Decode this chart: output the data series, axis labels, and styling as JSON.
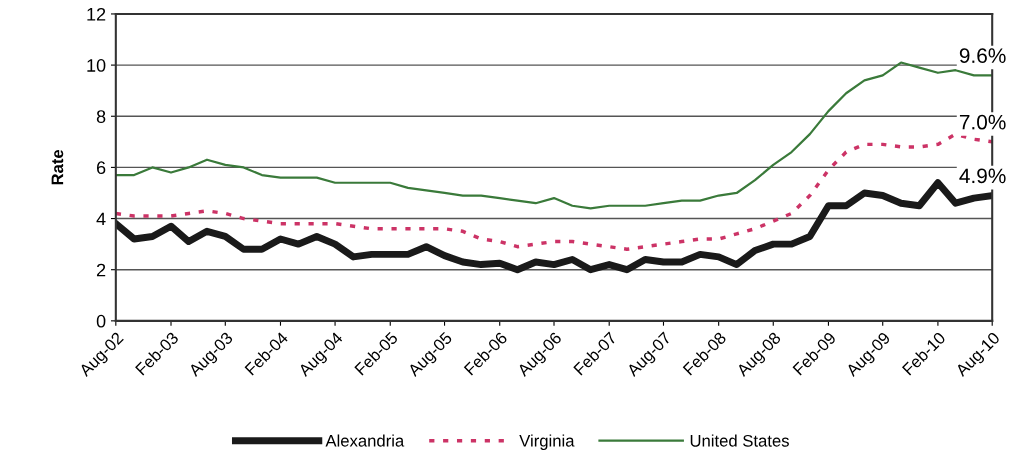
{
  "chart_data": {
    "type": "line",
    "ylabel": "Rate",
    "x": [
      "2002-08",
      "2002-10",
      "2002-12",
      "2003-02",
      "2003-04",
      "2003-06",
      "2003-08",
      "2003-10",
      "2003-12",
      "2004-02",
      "2004-04",
      "2004-06",
      "2004-08",
      "2004-10",
      "2004-12",
      "2005-02",
      "2005-04",
      "2005-06",
      "2005-08",
      "2005-10",
      "2005-12",
      "2006-02",
      "2006-04",
      "2006-06",
      "2006-08",
      "2006-10",
      "2006-12",
      "2007-02",
      "2007-04",
      "2007-06",
      "2007-08",
      "2007-10",
      "2007-12",
      "2008-02",
      "2008-04",
      "2008-06",
      "2008-08",
      "2008-10",
      "2008-12",
      "2009-02",
      "2009-04",
      "2009-06",
      "2009-08",
      "2009-10",
      "2009-12",
      "2010-02",
      "2010-04",
      "2010-06",
      "2010-08"
    ],
    "series": [
      {
        "name": "Alexandria",
        "color": "#1a1a1a",
        "line_style": "solid",
        "values": [
          3.8,
          3.2,
          3.3,
          3.7,
          3.1,
          3.5,
          3.3,
          2.8,
          2.8,
          3.2,
          3.0,
          3.3,
          3.0,
          2.5,
          2.6,
          2.6,
          2.6,
          2.9,
          2.55,
          2.3,
          2.2,
          2.25,
          2.0,
          2.3,
          2.2,
          2.4,
          2.0,
          2.2,
          2.0,
          2.4,
          2.3,
          2.3,
          2.6,
          2.5,
          2.2,
          2.75,
          3.0,
          3.0,
          3.3,
          4.5,
          4.5,
          5.0,
          4.9,
          4.6,
          4.5,
          5.4,
          4.6,
          4.8,
          4.9
        ]
      },
      {
        "name": "Virginia",
        "color": "#cc3366",
        "line_style": "dotted",
        "values": [
          4.2,
          4.1,
          4.1,
          4.1,
          4.2,
          4.3,
          4.2,
          4.0,
          3.9,
          3.8,
          3.8,
          3.8,
          3.8,
          3.7,
          3.6,
          3.6,
          3.6,
          3.6,
          3.6,
          3.5,
          3.2,
          3.1,
          2.9,
          3.0,
          3.1,
          3.1,
          3.0,
          2.9,
          2.8,
          2.9,
          3.0,
          3.1,
          3.2,
          3.2,
          3.4,
          3.6,
          3.9,
          4.2,
          4.9,
          5.9,
          6.6,
          6.9,
          6.9,
          6.8,
          6.8,
          6.9,
          7.3,
          7.1,
          7.0
        ]
      },
      {
        "name": "United States",
        "color": "#3a7a3a",
        "line_style": "solid",
        "values": [
          5.7,
          5.7,
          6.0,
          5.8,
          6.0,
          6.3,
          6.1,
          6.0,
          5.7,
          5.6,
          5.6,
          5.6,
          5.4,
          5.4,
          5.4,
          5.4,
          5.2,
          5.1,
          5.0,
          4.9,
          4.9,
          4.8,
          4.7,
          4.6,
          4.8,
          4.5,
          4.4,
          4.5,
          4.5,
          4.5,
          4.6,
          4.7,
          4.7,
          4.9,
          5.0,
          5.5,
          6.1,
          6.6,
          7.3,
          8.2,
          8.9,
          9.4,
          9.6,
          10.1,
          9.9,
          9.7,
          9.8,
          9.6,
          9.6
        ]
      }
    ],
    "annotations": [
      {
        "text": "9.6%",
        "x": "2010-08",
        "y": 9.6
      },
      {
        "text": "7.0%",
        "x": "2010-08",
        "y": 7.0
      },
      {
        "text": "4.9%",
        "x": "2010-08",
        "y": 4.9
      }
    ],
    "xlim": [
      "2002-08",
      "2010-08"
    ],
    "xticks": [
      {
        "value": "2002-08",
        "label": "Aug-02"
      },
      {
        "value": "2003-02",
        "label": "Feb-03"
      },
      {
        "value": "2003-08",
        "label": "Aug-03"
      },
      {
        "value": "2004-02",
        "label": "Feb-04"
      },
      {
        "value": "2004-08",
        "label": "Aug-04"
      },
      {
        "value": "2005-02",
        "label": "Feb-05"
      },
      {
        "value": "2005-08",
        "label": "Aug-05"
      },
      {
        "value": "2006-02",
        "label": "Feb-06"
      },
      {
        "value": "2006-08",
        "label": "Aug-06"
      },
      {
        "value": "2007-02",
        "label": "Feb-07"
      },
      {
        "value": "2007-08",
        "label": "Aug-07"
      },
      {
        "value": "2008-02",
        "label": "Feb-08"
      },
      {
        "value": "2008-08",
        "label": "Aug-08"
      },
      {
        "value": "2009-02",
        "label": "Feb-09"
      },
      {
        "value": "2009-08",
        "label": "Aug-09"
      },
      {
        "value": "2010-02",
        "label": "Feb-10"
      },
      {
        "value": "2010-08",
        "label": "Aug-10"
      }
    ],
    "ylim": [
      0,
      12
    ],
    "yticks": [
      0,
      2,
      4,
      6,
      8,
      10,
      12
    ],
    "grid": "y",
    "legend": "bottom",
    "marker": "none"
  }
}
